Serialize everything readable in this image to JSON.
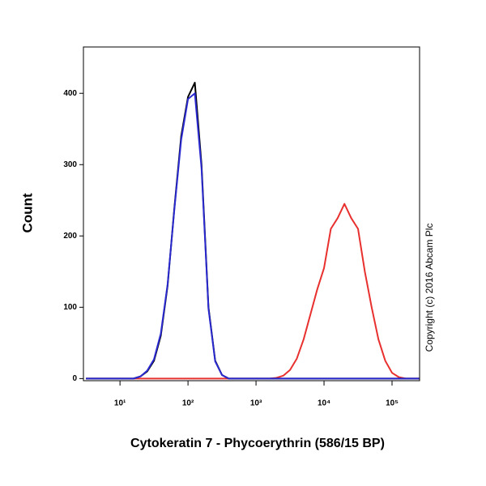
{
  "chart_data": {
    "type": "line",
    "x_label": "Cytokeratin 7 - Phycoerythrin (586/15 BP)",
    "y_label": "Count",
    "annotation": "Copyright (c) 2016 Abcam Plc",
    "log_x": true,
    "xlim": [
      2.9,
      254000
    ],
    "ylim": [
      -3,
      465
    ],
    "xticks": [
      {
        "value": 10,
        "label": "10¹"
      },
      {
        "value": 100,
        "label": "10²"
      },
      {
        "value": 1000,
        "label": "10³"
      },
      {
        "value": 10000,
        "label": "10⁴"
      },
      {
        "value": 100000,
        "label": "10⁵"
      }
    ],
    "yticks": [
      0,
      100,
      200,
      300,
      400
    ],
    "x": [
      3.16,
      3.98,
      5.01,
      6.31,
      7.94,
      10,
      12.6,
      15.8,
      20,
      25.1,
      31.6,
      39.8,
      50.1,
      63.1,
      79.4,
      100,
      126,
      158,
      200,
      251,
      316,
      398,
      501,
      631,
      794,
      1000,
      1259,
      1585,
      1995,
      2512,
      3162,
      3981,
      5012,
      6310,
      7943,
      10000,
      12589,
      15849,
      19953,
      25119,
      31623,
      39811,
      50119,
      63096,
      79433,
      100000,
      125893,
      158489,
      199526,
      251189
    ],
    "series": [
      {
        "color": "#e8302e",
        "values": [
          0,
          0,
          0,
          0,
          0,
          0,
          0,
          0,
          0,
          0,
          0,
          0,
          0,
          0,
          0,
          0,
          0,
          0,
          0,
          0,
          0,
          0,
          0,
          0,
          0,
          0,
          0,
          0,
          1,
          4,
          12,
          28,
          55,
          90,
          125,
          155,
          210,
          225,
          245,
          225,
          210,
          150,
          100,
          55,
          25,
          8,
          2,
          0,
          0,
          0
        ]
      },
      {
        "color": "#000000",
        "values": [
          0,
          0,
          0,
          0,
          0,
          0,
          0,
          0,
          3,
          10,
          25,
          60,
          130,
          240,
          340,
          395,
          415,
          300,
          100,
          25,
          5,
          0,
          0,
          0,
          0,
          0,
          0,
          0,
          0,
          0,
          0,
          0,
          0,
          0,
          0,
          0,
          0,
          0,
          0,
          0,
          0,
          0,
          0,
          0,
          0,
          0,
          0,
          0,
          0,
          0
        ]
      },
      {
        "color": "#2a2ad0",
        "values": [
          0,
          0,
          0,
          0,
          0,
          0,
          0,
          0,
          3,
          11,
          27,
          63,
          132,
          238,
          335,
          392,
          400,
          295,
          98,
          24,
          5,
          0,
          0,
          0,
          0,
          0,
          0,
          0,
          0,
          0,
          0,
          0,
          0,
          0,
          0,
          0,
          0,
          0,
          0,
          0,
          0,
          0,
          0,
          0,
          0,
          0,
          0,
          0,
          0,
          0
        ]
      }
    ]
  }
}
